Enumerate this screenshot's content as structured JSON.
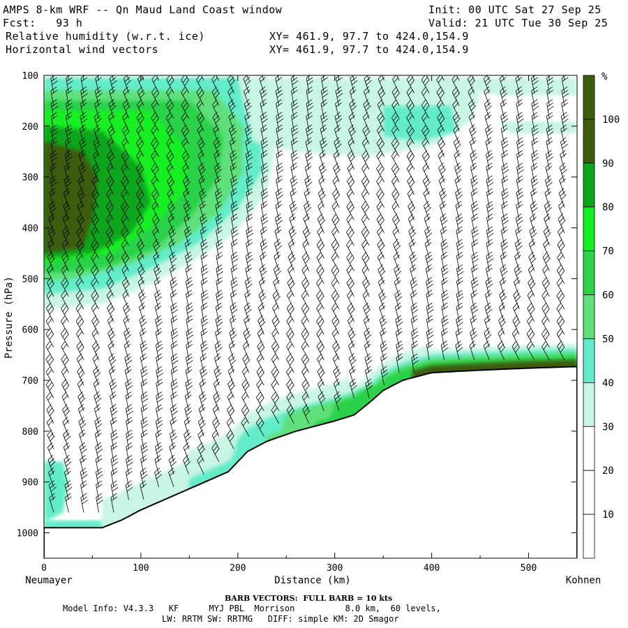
{
  "header": {
    "title": "AMPS 8-km WRF -- Qn Maud Land Coast window",
    "init": "Init: 00 UTC Sat 27 Sep 25",
    "fcst": "Fcst:   93 h",
    "valid": "Valid: 21 UTC Tue 30 Sep 25",
    "field1": "Relative humidity (w.r.t. ice)",
    "field1_xy": "XY= 461.9, 97.7 to 424.0,154.9",
    "field2": "Horizontal wind vectors",
    "field2_xy": "XY= 461.9, 97.7 to 424.0,154.9"
  },
  "footer": {
    "barb_note": "BARB VECTORS:  FULL BARB = 10 kts",
    "model_info_1": "Model Info: V4.3.3   KF      MYJ PBL  Morrison          8.0 km,  60 levels,",
    "model_info_2": "LW: RRTM SW: RRTMG   DIFF: simple KM: 2D Smagor"
  },
  "chart_data": {
    "type": "heatmap",
    "xlabel": "Distance (km)",
    "ylabel": "Pressure (hPa)",
    "x_start_label": "Neumayer",
    "x_end_label": "Kohnen",
    "xlim": [
      0,
      550
    ],
    "ylim": [
      1050,
      100
    ],
    "x_ticks": [
      0,
      100,
      200,
      300,
      400,
      500
    ],
    "y_ticks": [
      100,
      200,
      300,
      400,
      500,
      600,
      700,
      800,
      900,
      1000
    ],
    "colorbar": {
      "unit": "%",
      "levels": [
        10,
        20,
        30,
        40,
        50,
        60,
        70,
        80,
        90,
        100
      ],
      "colors": [
        "#ffffff",
        "#ffffff",
        "#ffffff",
        "#c8f5e4",
        "#64ecc8",
        "#5fe07a",
        "#2bd24a",
        "#12f024",
        "#0ba51e",
        "#3d5c0a"
      ]
    },
    "terrain_surface": {
      "x": [
        0,
        60,
        80,
        100,
        130,
        160,
        190,
        210,
        230,
        260,
        290,
        300,
        320,
        335,
        350,
        370,
        400,
        450,
        500,
        550
      ],
      "pressure": [
        990,
        990,
        975,
        955,
        930,
        905,
        880,
        840,
        820,
        800,
        785,
        780,
        768,
        745,
        720,
        700,
        685,
        680,
        676,
        673
      ]
    },
    "rh_regions": [
      {
        "name": "upper-left moist layer",
        "x_range": [
          0,
          210
        ],
        "p_range": [
          110,
          540
        ],
        "max_rh": 100
      },
      {
        "name": "upper-mid cloud",
        "x_range": [
          200,
          450
        ],
        "p_range": [
          110,
          250
        ],
        "max_rh": 60
      },
      {
        "name": "near-surface moist layer",
        "x_range": [
          60,
          550
        ],
        "p_range": [
          620,
          990
        ],
        "max_rh": 100
      },
      {
        "name": "western low-level patch",
        "x_range": [
          0,
          25
        ],
        "p_range": [
          850,
          990
        ],
        "max_rh": 50
      }
    ],
    "wind_barbs": {
      "column_spacing_km": 15.5,
      "levels_hpa_step": 25,
      "full_barb_kts": 10
    }
  }
}
